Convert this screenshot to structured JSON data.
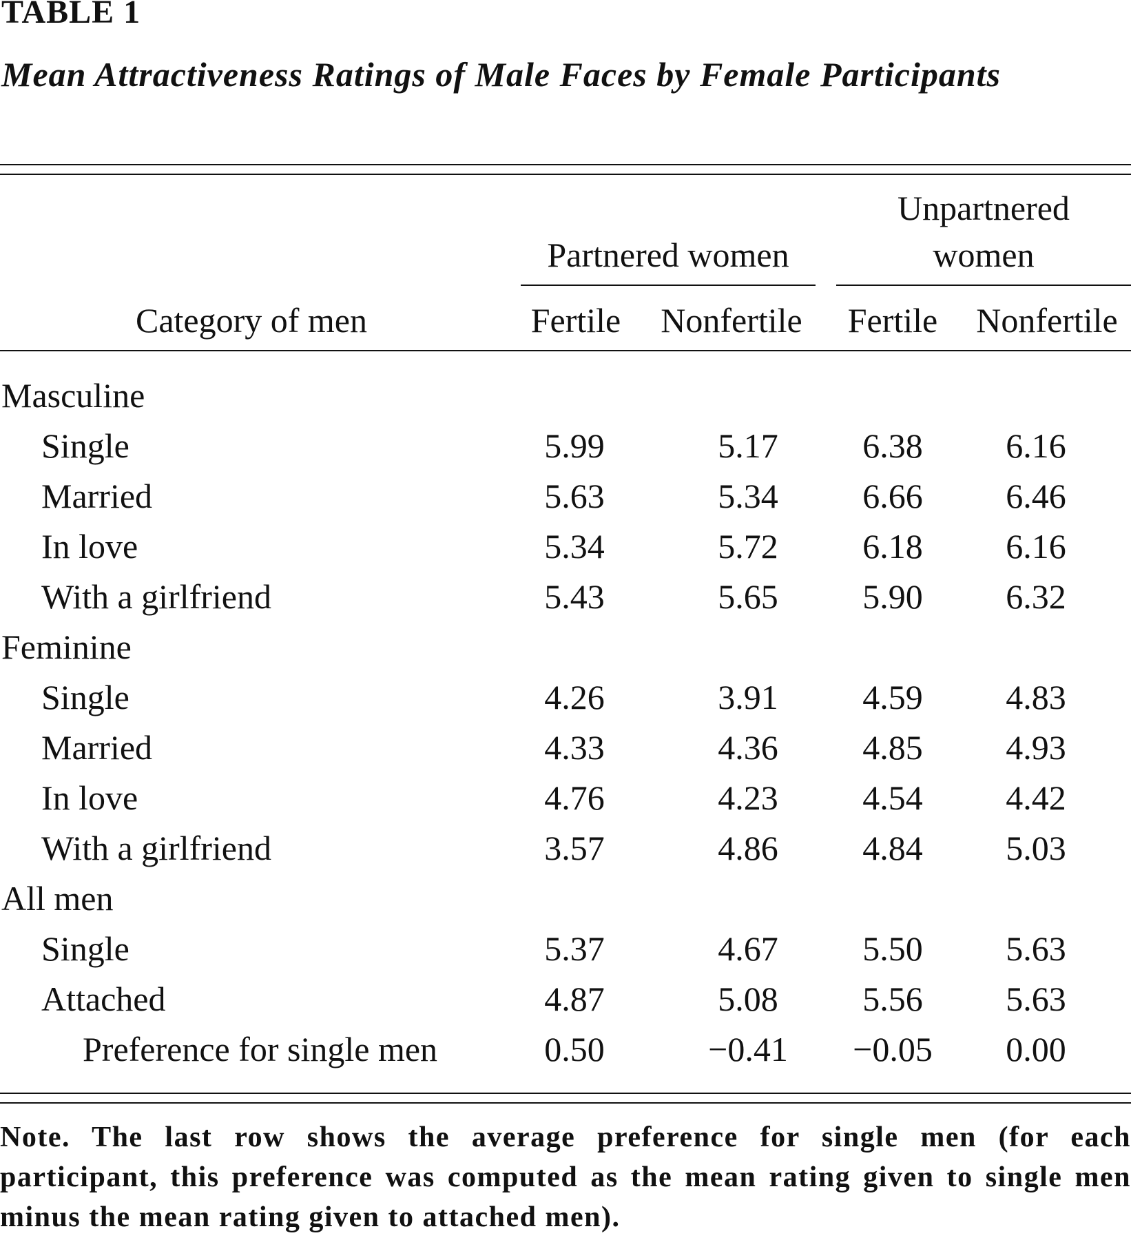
{
  "table": {
    "label": "TABLE 1",
    "caption": "Mean Attractiveness Ratings of Male Faces by Female Participants",
    "stub_header": "Category of men",
    "groups": [
      {
        "label_line1": "",
        "label_line2": "Partnered women"
      },
      {
        "label_line1": "Unpartnered",
        "label_line2": "women"
      }
    ],
    "subcolumns": [
      "Fertile",
      "Nonfertile",
      "Fertile",
      "Nonfertile"
    ],
    "sections": [
      {
        "label": "Masculine",
        "rows": [
          {
            "label": "Single",
            "values": [
              "5.99",
              "5.17",
              "6.38",
              "6.16"
            ]
          },
          {
            "label": "Married",
            "values": [
              "5.63",
              "5.34",
              "6.66",
              "6.46"
            ]
          },
          {
            "label": "In love",
            "values": [
              "5.34",
              "5.72",
              "6.18",
              "6.16"
            ]
          },
          {
            "label": "With a girlfriend",
            "values": [
              "5.43",
              "5.65",
              "5.90",
              "6.32"
            ]
          }
        ]
      },
      {
        "label": "Feminine",
        "rows": [
          {
            "label": "Single",
            "values": [
              "4.26",
              "3.91",
              "4.59",
              "4.83"
            ]
          },
          {
            "label": "Married",
            "values": [
              "4.33",
              "4.36",
              "4.85",
              "4.93"
            ]
          },
          {
            "label": "In love",
            "values": [
              "4.76",
              "4.23",
              "4.54",
              "4.42"
            ]
          },
          {
            "label": "With a girlfriend",
            "values": [
              "3.57",
              "4.86",
              "4.84",
              "5.03"
            ]
          }
        ]
      },
      {
        "label": "All men",
        "rows": [
          {
            "label": "Single",
            "values": [
              "5.37",
              "4.67",
              "5.50",
              "5.63"
            ]
          },
          {
            "label": "Attached",
            "values": [
              "4.87",
              "5.08",
              "5.56",
              "5.63"
            ]
          }
        ]
      }
    ],
    "summary_row": {
      "label": "Preference for single men",
      "values": [
        "0.50",
        "−0.41",
        "−0.05",
        "0.00"
      ]
    },
    "note": {
      "lead": "Note.",
      "text": "The last row shows the average preference for single men (for each participant, this preference was computed as the mean rating given to single men minus the mean rating given to attached men)."
    }
  }
}
